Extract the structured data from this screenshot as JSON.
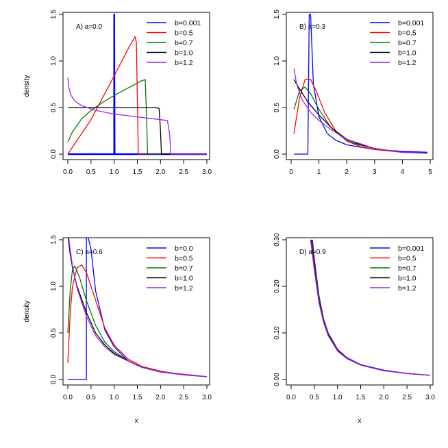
{
  "colors": {
    "b=0.001": "#0000ff",
    "b=0.0": "#0000ff",
    "b=0.5": "#ff0000",
    "b=0.7": "#007700",
    "b=1.0": "#000000",
    "b=1.2": "#a020f0"
  },
  "chart_data": [
    {
      "type": "line",
      "label": "A) a=0.0",
      "xlabel": "",
      "ylabel": "density",
      "xlim": [
        0,
        3.0
      ],
      "ylim": [
        0,
        1.5
      ],
      "xticks": [
        "0.0",
        "0.5",
        "1.0",
        "1.5",
        "2.0",
        "2.5",
        "3.0"
      ],
      "yticks": [
        "0.0",
        "0.5",
        "1.0",
        "1.5"
      ],
      "legend": [
        "b=0.001",
        "b=0.5",
        "b=0.7",
        "b=1.0",
        "b=1.2"
      ],
      "series": [
        {
          "name": "b=0.001",
          "x": [
            0,
            0.99,
            1.0,
            1.0,
            1.01,
            3.0
          ],
          "y": [
            0,
            0,
            0,
            1.5,
            0,
            0
          ]
        },
        {
          "name": "b=0.5",
          "x": [
            0,
            0.5,
            1.0,
            1.3,
            1.45,
            1.48,
            1.5,
            1.52,
            3.0
          ],
          "y": [
            0,
            0.37,
            0.84,
            1.13,
            1.26,
            1.2,
            0.6,
            0,
            0
          ]
        },
        {
          "name": "b=0.7",
          "x": [
            0,
            0.1,
            0.3,
            0.5,
            0.8,
            1.0,
            1.3,
            1.6,
            1.67,
            1.7,
            1.72,
            3.0
          ],
          "y": [
            0.13,
            0.24,
            0.38,
            0.47,
            0.57,
            0.63,
            0.71,
            0.79,
            0.8,
            0.4,
            0,
            0
          ]
        },
        {
          "name": "b=1.0",
          "x": [
            0,
            1.0,
            1.9,
            1.97,
            2.0,
            2.02,
            3.0
          ],
          "y": [
            0.5,
            0.5,
            0.5,
            0.49,
            0.25,
            0,
            0
          ]
        },
        {
          "name": "b=1.2",
          "x": [
            0,
            0.02,
            0.06,
            0.15,
            0.3,
            0.6,
            1.0,
            1.5,
            2.0,
            2.15,
            2.2,
            2.22,
            3.0
          ],
          "y": [
            0.82,
            0.72,
            0.64,
            0.57,
            0.52,
            0.47,
            0.43,
            0.4,
            0.37,
            0.36,
            0.2,
            0,
            0
          ]
        }
      ]
    },
    {
      "type": "line",
      "label": "B) a=0.3",
      "xlabel": "",
      "ylabel": "",
      "xlim": [
        0,
        5
      ],
      "ylim": [
        0,
        1.5
      ],
      "xticks": [
        "0",
        "1",
        "2",
        "3",
        "4",
        "5"
      ],
      "yticks": [
        "0.0",
        "0.5",
        "1.0",
        "1.5"
      ],
      "legend": [
        "b=0.001",
        "b=0.5",
        "b=0.7",
        "b=1.0",
        "b=1.2"
      ],
      "series": [
        {
          "name": "b=0.001",
          "x": [
            0.1,
            0.5,
            0.6,
            0.65,
            0.7,
            0.8,
            1.0,
            1.3,
            1.6,
            2.0,
            3.0,
            4.0,
            4.9
          ],
          "y": [
            0,
            0,
            0,
            1.5,
            1.5,
            0.75,
            0.4,
            0.22,
            0.15,
            0.1,
            0.05,
            0.03,
            0.02
          ]
        },
        {
          "name": "b=0.5",
          "x": [
            0.1,
            0.3,
            0.5,
            0.7,
            0.9,
            1.2,
            1.6,
            2.0,
            2.5,
            3.0,
            4.0,
            4.9
          ],
          "y": [
            0.22,
            0.6,
            0.8,
            0.8,
            0.68,
            0.45,
            0.25,
            0.14,
            0.08,
            0.05,
            0.02,
            0.01
          ]
        },
        {
          "name": "b=0.7",
          "x": [
            0.1,
            0.3,
            0.5,
            0.7,
            1.0,
            1.4,
            1.8,
            2.2,
            3.0,
            4.0,
            4.9
          ],
          "y": [
            0.48,
            0.68,
            0.72,
            0.65,
            0.48,
            0.3,
            0.19,
            0.12,
            0.06,
            0.02,
            0.01
          ]
        },
        {
          "name": "b=1.0",
          "x": [
            0.1,
            0.3,
            0.6,
            1.0,
            1.5,
            2.0,
            2.5,
            3.0,
            4.0,
            4.9
          ],
          "y": [
            0.8,
            0.7,
            0.56,
            0.42,
            0.27,
            0.16,
            0.1,
            0.06,
            0.02,
            0.01
          ]
        },
        {
          "name": "b=1.2",
          "x": [
            0.1,
            0.2,
            0.4,
            0.7,
            1.0,
            1.5,
            2.0,
            3.0,
            4.0,
            4.9
          ],
          "y": [
            0.92,
            0.75,
            0.58,
            0.45,
            0.36,
            0.25,
            0.16,
            0.06,
            0.02,
            0.01
          ]
        }
      ]
    },
    {
      "type": "line",
      "label": "C) a=0.6",
      "xlabel": "x",
      "ylabel": "density",
      "xlim": [
        0,
        3.0
      ],
      "ylim": [
        0,
        1.5
      ],
      "xticks": [
        "0.0",
        "0.5",
        "1.0",
        "1.5",
        "2.0",
        "2.5",
        "3.0"
      ],
      "yticks": [
        "0.0",
        "0.5",
        "1.0",
        "1.5"
      ],
      "legend": [
        "b=0.0",
        "b=0.5",
        "b=0.7",
        "b=1.0",
        "b=1.2"
      ],
      "series": [
        {
          "name": "b=0.0",
          "x": [
            0,
            0.38,
            0.39,
            0.4,
            0.4,
            0.5,
            0.6,
            0.8,
            1.0,
            1.3,
            1.6,
            2.0,
            2.5,
            3.0
          ],
          "y": [
            0,
            0,
            0,
            0,
            1.6,
            1.4,
            0.95,
            0.53,
            0.35,
            0.2,
            0.13,
            0.08,
            0.05,
            0.03
          ]
        },
        {
          "name": "b=0.5",
          "x": [
            0,
            0.05,
            0.1,
            0.2,
            0.3,
            0.4,
            0.6,
            0.8,
            1.0,
            1.3,
            1.6,
            2.0,
            2.5,
            3.0
          ],
          "y": [
            0.18,
            0.7,
            1.0,
            1.2,
            1.23,
            1.15,
            0.85,
            0.55,
            0.37,
            0.22,
            0.14,
            0.09,
            0.05,
            0.03
          ]
        },
        {
          "name": "b=0.7",
          "x": [
            0,
            0.05,
            0.1,
            0.15,
            0.25,
            0.4,
            0.6,
            0.8,
            1.0,
            1.3,
            1.6,
            2.0,
            3.0
          ],
          "y": [
            0.5,
            0.95,
            1.18,
            1.22,
            1.1,
            0.85,
            0.58,
            0.4,
            0.3,
            0.2,
            0.13,
            0.08,
            0.03
          ]
        },
        {
          "name": "b=1.0",
          "x": [
            0,
            0.05,
            0.1,
            0.2,
            0.4,
            0.6,
            0.8,
            1.0,
            1.5,
            2.0,
            3.0
          ],
          "y": [
            1.55,
            1.35,
            1.2,
            1.0,
            0.72,
            0.5,
            0.37,
            0.28,
            0.15,
            0.08,
            0.03
          ]
        },
        {
          "name": "b=1.2",
          "x": [
            0,
            0.05,
            0.1,
            0.2,
            0.4,
            0.6,
            0.8,
            1.0,
            1.5,
            2.0,
            3.0
          ],
          "y": [
            1.6,
            1.4,
            1.22,
            0.98,
            0.68,
            0.47,
            0.35,
            0.27,
            0.15,
            0.08,
            0.03
          ]
        }
      ]
    },
    {
      "type": "line",
      "label": "D) a=0.9",
      "xlabel": "x",
      "ylabel": "",
      "xlim": [
        0,
        3.0
      ],
      "ylim": [
        0,
        0.3
      ],
      "xticks": [
        "0.0",
        "0.5",
        "1.0",
        "1.5",
        "2.0",
        "2.5",
        "3.0"
      ],
      "yticks": [
        "0.00",
        "0.10",
        "0.20",
        "0.30"
      ],
      "legend": [
        "b=0.001",
        "b=0.5",
        "b=0.7",
        "b=1.0",
        "b=1.2"
      ],
      "series": [
        {
          "name": "b=0.001",
          "x": [
            0.46,
            0.5,
            0.6,
            0.7,
            0.8,
            1.0,
            1.2,
            1.5,
            2.0,
            2.5,
            3.0
          ],
          "y": [
            0.3,
            0.26,
            0.18,
            0.13,
            0.1,
            0.065,
            0.047,
            0.032,
            0.02,
            0.013,
            0.009
          ]
        },
        {
          "name": "b=0.5",
          "x": [
            0.45,
            0.5,
            0.6,
            0.7,
            0.8,
            1.0,
            1.2,
            1.5,
            2.0,
            2.5,
            3.0
          ],
          "y": [
            0.3,
            0.25,
            0.175,
            0.128,
            0.098,
            0.064,
            0.046,
            0.031,
            0.019,
            0.013,
            0.009
          ]
        },
        {
          "name": "b=0.7",
          "x": [
            0.44,
            0.5,
            0.6,
            0.7,
            0.8,
            1.0,
            1.2,
            1.5,
            2.0,
            2.5,
            3.0
          ],
          "y": [
            0.3,
            0.245,
            0.172,
            0.126,
            0.097,
            0.063,
            0.046,
            0.031,
            0.019,
            0.013,
            0.009
          ]
        },
        {
          "name": "b=1.0",
          "x": [
            0.43,
            0.5,
            0.6,
            0.7,
            0.8,
            1.0,
            1.2,
            1.5,
            2.0,
            2.5,
            3.0
          ],
          "y": [
            0.3,
            0.24,
            0.168,
            0.124,
            0.095,
            0.062,
            0.045,
            0.031,
            0.019,
            0.013,
            0.009
          ]
        },
        {
          "name": "b=1.2",
          "x": [
            0.42,
            0.5,
            0.6,
            0.7,
            0.8,
            1.0,
            1.2,
            1.5,
            2.0,
            2.5,
            3.0
          ],
          "y": [
            0.3,
            0.235,
            0.165,
            0.122,
            0.094,
            0.061,
            0.045,
            0.031,
            0.019,
            0.013,
            0.009
          ]
        }
      ]
    }
  ]
}
